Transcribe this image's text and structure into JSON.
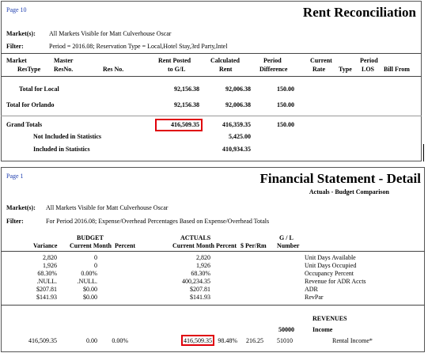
{
  "rent_reconciliation": {
    "page": "Page 10",
    "title": "Rent Reconciliation",
    "market_label": "Market(s):",
    "market_value": "All Markets Visible for Matt Culverhouse Oscar",
    "filter_label": "Filter:",
    "filter_value": "Period = 2016.08; Reservation Type = Local,Hotel Stay,3rd Party,Intel",
    "header_top": [
      "Market",
      "Master",
      "Rent Posted",
      "Calculated",
      "Period",
      "Current",
      "Period"
    ],
    "header_bottom": [
      "ResType",
      "ResNo.",
      "Res No.",
      "to G/L",
      "Rent",
      "Difference",
      "Rate",
      "Type",
      "LOS",
      "Bill From"
    ],
    "rows": [
      {
        "label": "Total for Local",
        "rent_posted": "92,156.38",
        "calculated": "92,006.38",
        "difference": "150.00"
      },
      {
        "label": "Total for Orlando",
        "rent_posted": "92,156.38",
        "calculated": "92,006.38",
        "difference": "150.00"
      },
      {
        "label": "Grand Totals",
        "rent_posted": "416,509.35",
        "calculated": "416,359.35",
        "difference": "150.00"
      },
      {
        "label": "Not Included in Statistics",
        "calculated": "5,425.00"
      },
      {
        "label": "Included in Statistics",
        "calculated": "410,934.35"
      }
    ]
  },
  "financial_statement": {
    "page": "Page 1",
    "title": "Financial Statement - Detail",
    "subtitle": "Actuals - Budget Comparison",
    "market_label": "Market(s):",
    "market_value": "All Markets Visible for Matt Culverhouse Oscar",
    "filter_label": "Filter:",
    "filter_value": "For Period 2016.08; Expense/Overhead Percentages Based on Expense/Overhead Totals",
    "header_groups": [
      "BUDGET",
      "ACTUALS",
      "G / L"
    ],
    "headers": [
      "Variance",
      "Current Month",
      "Percent",
      "Current Month",
      "Percent",
      "$ Per/Rm",
      "Number"
    ],
    "rows": [
      {
        "variance": "2,820",
        "budget": "0",
        "actual": "2,820",
        "description": "Unit Days Available"
      },
      {
        "variance": "1,926",
        "budget": "0",
        "actual": "1,926",
        "description": "Unit Days Occupied"
      },
      {
        "variance": "68.30%",
        "budget": "0.00%",
        "actual": "68.30%",
        "description": "Occupancy Percent"
      },
      {
        "variance": ".NULL.",
        "budget": ".NULL.",
        "actual": "400,234.35",
        "description": "Revenue for ADR Accts"
      },
      {
        "variance": "$207.81",
        "budget": "$0.00",
        "actual": "$207.81",
        "description": "ADR"
      },
      {
        "variance": "$141.93",
        "budget": "$0.00",
        "actual": "$141.93",
        "description": "RevPar"
      }
    ],
    "section": "REVENUES",
    "group_number": "50000",
    "group_name": "Income",
    "detail": {
      "variance": "416,509.35",
      "budget": "0.00",
      "budget_percent": "0.00%",
      "actual": "416,509.35",
      "actual_percent": "98.48%",
      "per_room": "216.25",
      "gl_number": "51010",
      "description": "Rental Income*"
    }
  }
}
